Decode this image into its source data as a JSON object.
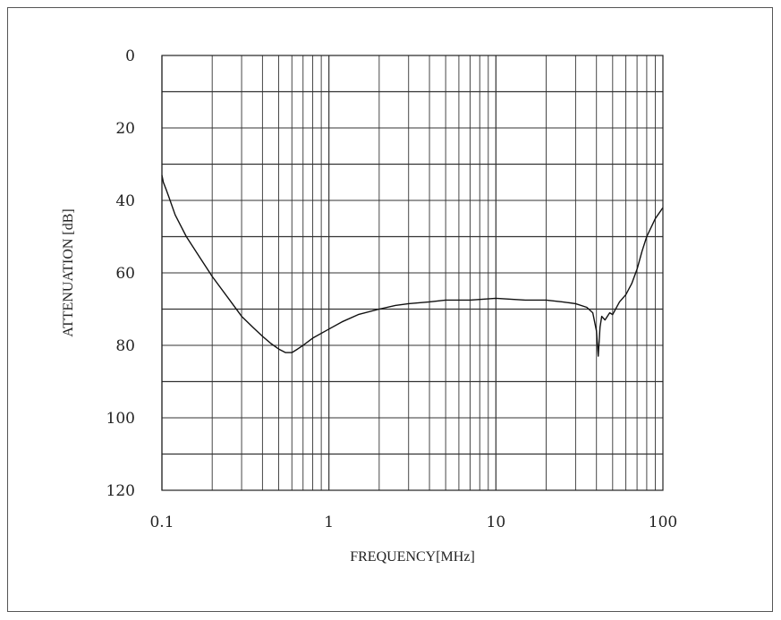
{
  "chart_data": {
    "type": "line",
    "title": "",
    "xlabel": "FREQUENCY[MHz]",
    "ylabel": "ATTENUATION [dB]",
    "xscale": "log",
    "xlim": [
      0.1,
      100
    ],
    "ylim": [
      0,
      120
    ],
    "y_inverted": true,
    "grid": true,
    "x_ticks": [
      "0.1",
      "1",
      "10",
      "100"
    ],
    "y_ticks": [
      "0",
      "20",
      "40",
      "60",
      "80",
      "100",
      "120"
    ],
    "series": [
      {
        "x": [
          0.1,
          0.102,
          0.106,
          0.11,
          0.12,
          0.14,
          0.17,
          0.2,
          0.25,
          0.3,
          0.35,
          0.4,
          0.45,
          0.5,
          0.55,
          0.6,
          0.65,
          0.7,
          0.8,
          1.0,
          1.2,
          1.5,
          2.0,
          2.5,
          3.0,
          4.0,
          5.0,
          7.0,
          10.0,
          15.0,
          20.0,
          25.0,
          30.0,
          35.0,
          38.0,
          40.0,
          41.0,
          42.0,
          43.0,
          45.0,
          48.0,
          50.0,
          55.0,
          60.0,
          65.0,
          70.0,
          75.0,
          80.0,
          90.0,
          100.0
        ],
        "values": [
          33,
          35,
          37,
          39,
          44,
          50,
          56,
          61,
          67,
          72,
          75,
          77.5,
          79.5,
          81,
          82,
          82,
          81,
          80,
          78,
          75.5,
          73.5,
          71.5,
          70,
          69,
          68.5,
          68,
          67.5,
          67.5,
          67,
          67.5,
          67.5,
          68,
          68.5,
          69.5,
          71,
          76,
          83,
          75,
          72,
          73,
          71,
          71.5,
          68,
          66,
          63,
          59,
          54,
          50,
          45,
          42
        ]
      }
    ]
  }
}
